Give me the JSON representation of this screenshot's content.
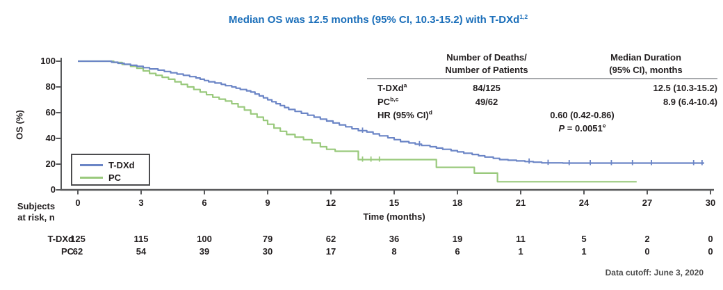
{
  "title": {
    "text": "Median OS was 12.5 months (95% CI, 10.3-15.2) with T-DXd",
    "sup": "1,2",
    "color": "#1b6fba"
  },
  "colors": {
    "axis": "#58595b",
    "text": "#231f20",
    "rule": "#a7a9ac",
    "tdxd_curve": "#6b85c6",
    "pc_curve": "#99c97c"
  },
  "chart_data": {
    "type": "line",
    "subtype": "kaplan_meier_step",
    "title": "Median OS was 12.5 months (95% CI, 10.3-15.2) with T-DXd",
    "xlabel": "Time (months)",
    "ylabel": "OS (%)",
    "xlim": [
      0,
      30
    ],
    "ylim": [
      0,
      100
    ],
    "xticks": [
      0,
      3,
      6,
      9,
      12,
      15,
      18,
      21,
      24,
      27,
      30
    ],
    "yticks": [
      0,
      20,
      40,
      60,
      80,
      100
    ],
    "grid": false,
    "legend_position": "lower left",
    "series": [
      {
        "name": "T-DXd",
        "color": "#6b85c6",
        "median_months": 12.5,
        "steps": [
          [
            0,
            100
          ],
          [
            1.3,
            100
          ],
          [
            1.6,
            99.2
          ],
          [
            1.9,
            98.4
          ],
          [
            2.2,
            97.6
          ],
          [
            2.5,
            96.8
          ],
          [
            2.8,
            96
          ],
          [
            3.1,
            95
          ],
          [
            3.4,
            94
          ],
          [
            3.8,
            93
          ],
          [
            4.1,
            92
          ],
          [
            4.4,
            91
          ],
          [
            4.7,
            90
          ],
          [
            5,
            89
          ],
          [
            5.3,
            88
          ],
          [
            5.6,
            87
          ],
          [
            5.8,
            86
          ],
          [
            6,
            85
          ],
          [
            6.2,
            84
          ],
          [
            6.5,
            83
          ],
          [
            6.8,
            82
          ],
          [
            7,
            81
          ],
          [
            7.3,
            80
          ],
          [
            7.5,
            79
          ],
          [
            7.7,
            78
          ],
          [
            8,
            77
          ],
          [
            8.2,
            76
          ],
          [
            8.4,
            74.5
          ],
          [
            8.6,
            73
          ],
          [
            8.8,
            71.5
          ],
          [
            9,
            70
          ],
          [
            9.2,
            68.5
          ],
          [
            9.4,
            67
          ],
          [
            9.6,
            65.5
          ],
          [
            9.8,
            64
          ],
          [
            10,
            62.5
          ],
          [
            10.3,
            61
          ],
          [
            10.6,
            59.5
          ],
          [
            10.9,
            58
          ],
          [
            11.2,
            56.5
          ],
          [
            11.5,
            55
          ],
          [
            11.8,
            53.5
          ],
          [
            12.1,
            52
          ],
          [
            12.4,
            50.5
          ],
          [
            12.7,
            49
          ],
          [
            13,
            47.5
          ],
          [
            13.3,
            46
          ],
          [
            13.7,
            45
          ],
          [
            14,
            43.5
          ],
          [
            14.3,
            42
          ],
          [
            14.7,
            40.5
          ],
          [
            15,
            39
          ],
          [
            15.3,
            37.5
          ],
          [
            15.7,
            36.5
          ],
          [
            16,
            35.5
          ],
          [
            16.3,
            34.5
          ],
          [
            16.7,
            33.5
          ],
          [
            17,
            32.5
          ],
          [
            17.3,
            31.5
          ],
          [
            17.7,
            30.5
          ],
          [
            18,
            29.5
          ],
          [
            18.3,
            28.5
          ],
          [
            18.7,
            27.5
          ],
          [
            19,
            26.5
          ],
          [
            19.3,
            25.5
          ],
          [
            19.7,
            24.5
          ],
          [
            20,
            23.5
          ],
          [
            20.4,
            23
          ],
          [
            20.8,
            22.5
          ],
          [
            21.2,
            22
          ],
          [
            21.6,
            21.5
          ],
          [
            22,
            21
          ],
          [
            23,
            20.8
          ],
          [
            29.7,
            20.8
          ]
        ],
        "censor_times": [
          13.5,
          16.2,
          21.4,
          22.3,
          23.3,
          24.3,
          25.3,
          26.3,
          27.2,
          29.2,
          29.6
        ]
      },
      {
        "name": "PC",
        "color": "#99c97c",
        "median_months": 8.9,
        "steps": [
          [
            0,
            100
          ],
          [
            1.3,
            100
          ],
          [
            1.7,
            99
          ],
          [
            2.1,
            97.5
          ],
          [
            2.5,
            96
          ],
          [
            2.8,
            94.5
          ],
          [
            3.1,
            92.5
          ],
          [
            3.4,
            90.5
          ],
          [
            3.7,
            89
          ],
          [
            4,
            87.5
          ],
          [
            4.3,
            86
          ],
          [
            4.6,
            84
          ],
          [
            4.9,
            82
          ],
          [
            5.2,
            80
          ],
          [
            5.5,
            78
          ],
          [
            5.8,
            76
          ],
          [
            6.1,
            74
          ],
          [
            6.4,
            72
          ],
          [
            6.7,
            70.5
          ],
          [
            7,
            69
          ],
          [
            7.3,
            67
          ],
          [
            7.6,
            64.5
          ],
          [
            7.9,
            62
          ],
          [
            8.2,
            59
          ],
          [
            8.5,
            56.5
          ],
          [
            8.8,
            54
          ],
          [
            9,
            51
          ],
          [
            9.3,
            48
          ],
          [
            9.6,
            45.5
          ],
          [
            9.9,
            43
          ],
          [
            10.3,
            41
          ],
          [
            10.7,
            39
          ],
          [
            11.1,
            36.5
          ],
          [
            11.5,
            33.5
          ],
          [
            11.8,
            31.5
          ],
          [
            12.2,
            30
          ],
          [
            13.3,
            23.5
          ],
          [
            17,
            17.5
          ],
          [
            18.8,
            13
          ],
          [
            19.9,
            6.3
          ],
          [
            26.5,
            6.3
          ]
        ],
        "censor_times": [
          13.5,
          13.9,
          14.3
        ]
      }
    ]
  },
  "stats_table": {
    "headers": [
      {
        "lines": [
          "Number of Deaths/",
          "Number of Patients"
        ]
      },
      {
        "lines": [
          "Median Duration",
          "(95% CI), months"
        ]
      }
    ],
    "rows": [
      {
        "label": "T-DXd",
        "sup": "a",
        "deaths": "84/125",
        "median": "12.5 (10.3-15.2)"
      },
      {
        "label": "PC",
        "sup": "b,c",
        "deaths": "49/62",
        "median": "8.9 (6.4-10.4)"
      }
    ],
    "hr_label": "HR (95% CI)",
    "hr_sup": "d",
    "hr_value": "0.60 (0.42-0.86)",
    "p_symbol": "P",
    "p_value": " = 0.0051",
    "p_sup": "e"
  },
  "at_risk": {
    "title_line1": "Subjects",
    "title_line2": "at risk, n",
    "rows": [
      {
        "label": "T-DXd",
        "values": [
          "125",
          "115",
          "100",
          "79",
          "62",
          "36",
          "19",
          "11",
          "5",
          "2",
          "0"
        ]
      },
      {
        "label": "PC",
        "values": [
          "62",
          "54",
          "39",
          "30",
          "17",
          "8",
          "6",
          "1",
          "1",
          "0",
          "0"
        ]
      }
    ]
  },
  "footer": {
    "text": "Data cutoff: June 3, 2020"
  }
}
